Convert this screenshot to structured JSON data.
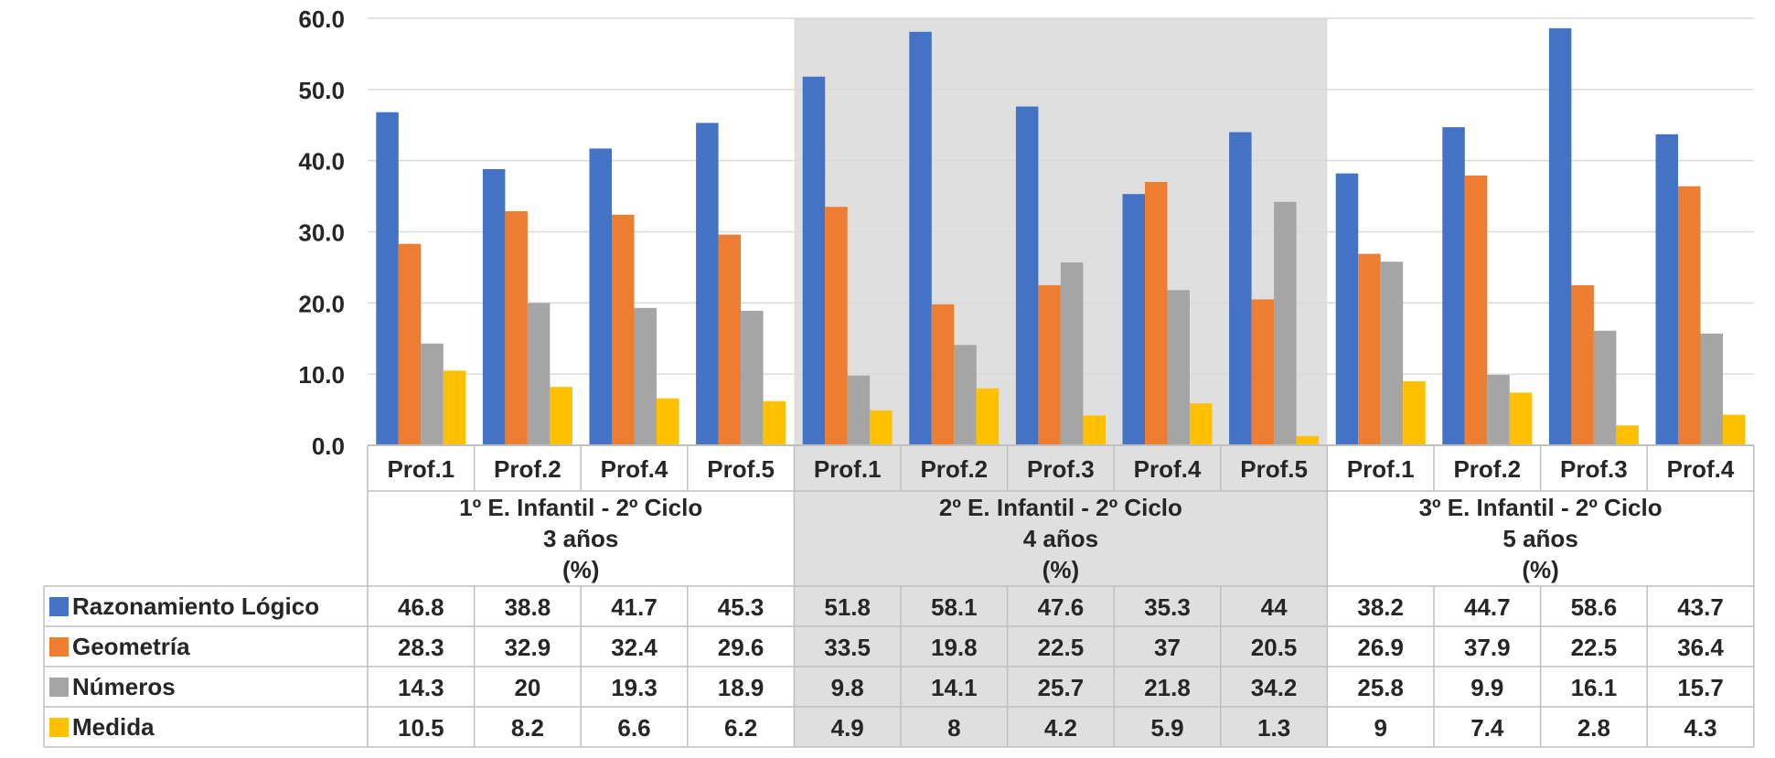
{
  "chart_data": {
    "type": "bar",
    "ylim": [
      0,
      60
    ],
    "yticks": [
      "0.0",
      "10.0",
      "20.0",
      "30.0",
      "40.0",
      "50.0",
      "60.0"
    ],
    "grid": true,
    "legend": "data-table-left",
    "groups": [
      {
        "label_lines": [
          "1º E. Infantil -  2º Ciclo",
          "3 años",
          "(%)"
        ],
        "shaded": false,
        "categories": [
          "Prof.1",
          "Prof.2",
          "Prof.4",
          "Prof.5"
        ]
      },
      {
        "label_lines": [
          "2º E. Infantil -  2º Ciclo",
          "4 años",
          "(%)"
        ],
        "shaded": true,
        "categories": [
          "Prof.1",
          "Prof.2",
          "Prof.3",
          "Prof.4",
          "Prof.5"
        ]
      },
      {
        "label_lines": [
          "3º E. Infantil -  2º Ciclo",
          "5 años",
          "(%)"
        ],
        "shaded": false,
        "categories": [
          "Prof.1",
          "Prof.2",
          "Prof.3",
          "Prof.4"
        ]
      }
    ],
    "series": [
      {
        "name": "Razonamiento Lógico",
        "color": "#4472c4",
        "values": [
          "46.8",
          "38.8",
          "41.7",
          "45.3",
          "51.8",
          "58.1",
          "47.6",
          "35.3",
          "44",
          "38.2",
          "44.7",
          "58.6",
          "43.7"
        ]
      },
      {
        "name": "Geometría",
        "color": "#ed7d31",
        "values": [
          "28.3",
          "32.9",
          "32.4",
          "29.6",
          "33.5",
          "19.8",
          "22.5",
          "37",
          "20.5",
          "26.9",
          "37.9",
          "22.5",
          "36.4"
        ]
      },
      {
        "name": "Números",
        "color": "#a5a5a5",
        "values": [
          "14.3",
          "20",
          "19.3",
          "18.9",
          "9.8",
          "14.1",
          "25.7",
          "21.8",
          "34.2",
          "25.8",
          "9.9",
          "16.1",
          "15.7"
        ]
      },
      {
        "name": "Medida",
        "color": "#ffc000",
        "values": [
          "10.5",
          "8.2",
          "6.6",
          "6.2",
          "4.9",
          "8",
          "4.2",
          "5.9",
          "1.3",
          "9",
          "7.4",
          "2.8",
          "4.3"
        ]
      }
    ]
  }
}
